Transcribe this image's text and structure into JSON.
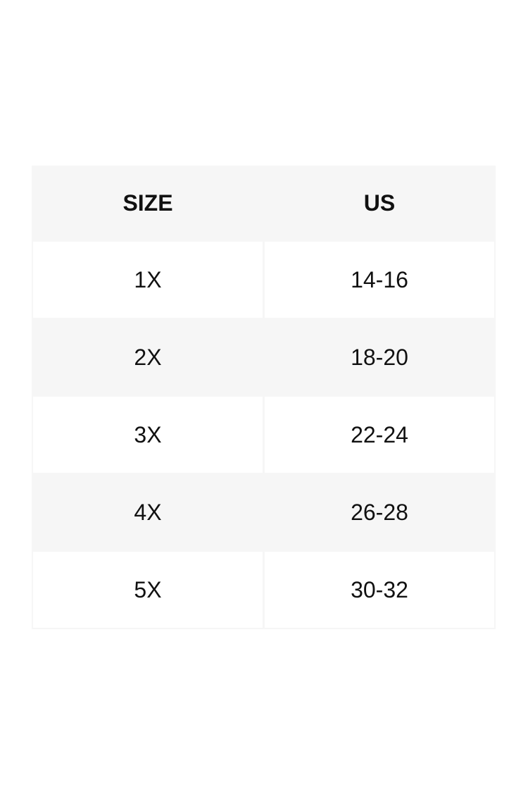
{
  "table": {
    "headers": [
      "SIZE",
      "US"
    ],
    "rows": [
      [
        "1X",
        "14-16"
      ],
      [
        "2X",
        "18-20"
      ],
      [
        "3X",
        "22-24"
      ],
      [
        "4X",
        "26-28"
      ],
      [
        "5X",
        "30-32"
      ]
    ]
  }
}
